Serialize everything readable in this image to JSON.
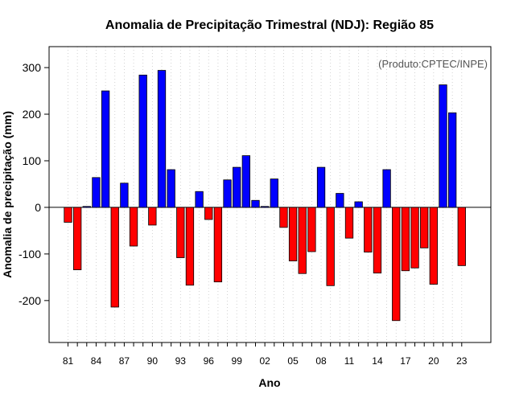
{
  "chart_data": {
    "type": "bar",
    "title": "Anomalia de Precipitação Trimestral (NDJ): Região 85",
    "xlabel": "Ano",
    "ylabel": "Anomalia de precipitação (mm)",
    "annotation": "(Produto:CPTEC/INPE)",
    "ylim": [
      -290,
      345
    ],
    "y_ticks": [
      -200,
      -100,
      0,
      100,
      200,
      300
    ],
    "x_tick_labels": [
      "81",
      "84",
      "87",
      "90",
      "93",
      "96",
      "99",
      "02",
      "05",
      "08",
      "11",
      "14",
      "17",
      "20",
      "23"
    ],
    "grid": "vertical dotted",
    "colors": {
      "positive": "#0000ff",
      "negative": "#ff0000"
    },
    "categories": [
      "1981",
      "1982",
      "1983",
      "1984",
      "1985",
      "1986",
      "1987",
      "1988",
      "1989",
      "1990",
      "1991",
      "1992",
      "1993",
      "1994",
      "1995",
      "1996",
      "1997",
      "1998",
      "1999",
      "2000",
      "2001",
      "2002",
      "2003",
      "2004",
      "2005",
      "2006",
      "2007",
      "2008",
      "2009",
      "2010",
      "2011",
      "2012",
      "2013",
      "2014",
      "2015",
      "2016",
      "2017",
      "2018",
      "2019",
      "2020",
      "2021",
      "2022",
      "2023"
    ],
    "values": [
      -32,
      -134,
      2,
      64,
      250,
      -214,
      52,
      -83,
      284,
      -38,
      294,
      81,
      -108,
      -167,
      34,
      -26,
      -160,
      59,
      86,
      111,
      15,
      2,
      61,
      -43,
      -115,
      -142,
      -95,
      86,
      -168,
      30,
      -66,
      12,
      -96,
      -141,
      81,
      -243,
      -136,
      -130,
      -87,
      -165,
      263,
      203,
      -125
    ]
  }
}
